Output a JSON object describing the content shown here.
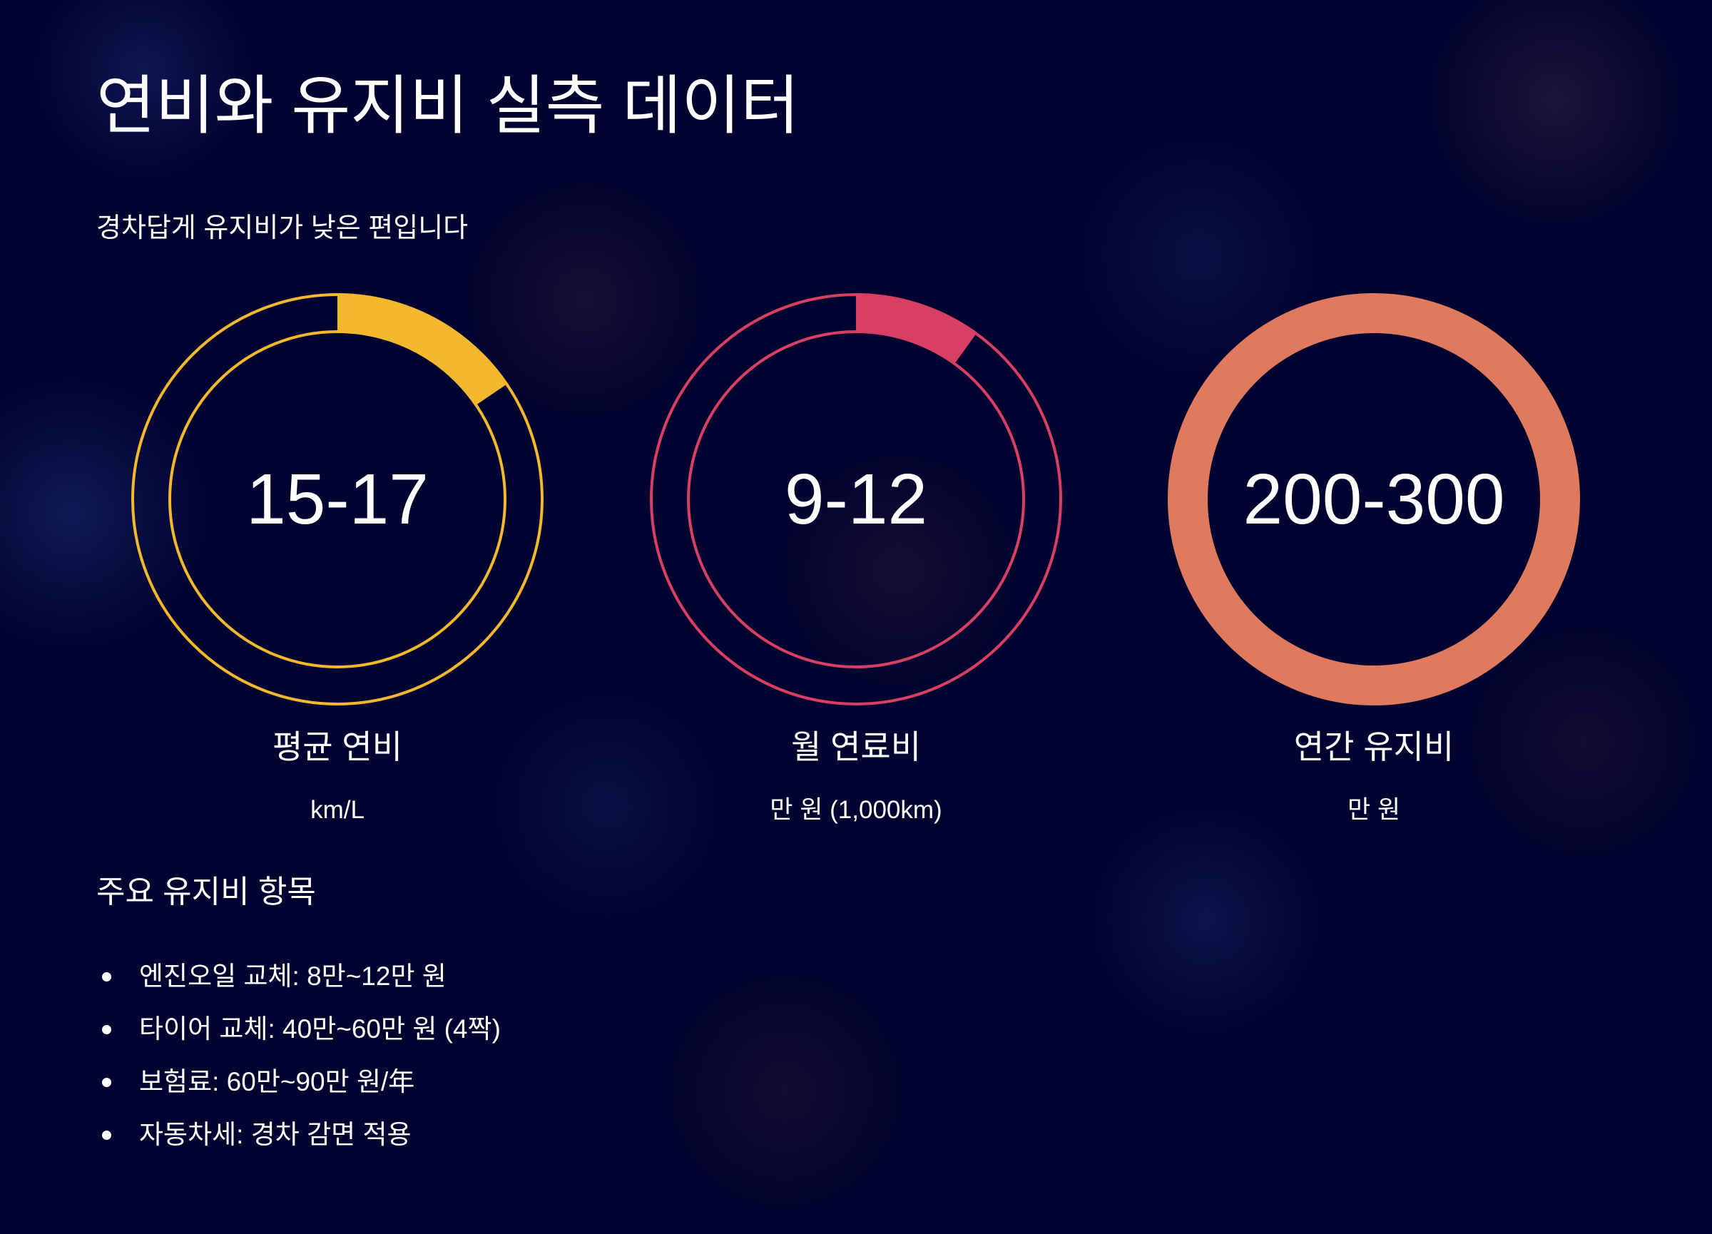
{
  "page": {
    "title": "연비와 유지비 실측 데이터",
    "subtitle": "경차답게 유지비가 낮은 편입니다",
    "background_color": "#010230"
  },
  "gauges": [
    {
      "value": "15-17",
      "label": "평균 연비",
      "unit": "km/L",
      "fill_fraction": 0.155,
      "color": "#f3b82d"
    },
    {
      "value": "9-12",
      "label": "월 연료비",
      "unit": "만 원 (1,000km)",
      "fill_fraction": 0.1,
      "color": "#d83f63"
    },
    {
      "value": "200-300",
      "label": "연간 유지비",
      "unit": "만 원",
      "fill_fraction": 1.0,
      "color": "#e07a5f"
    }
  ],
  "maintenance": {
    "heading": "주요 유지비 항목",
    "items": [
      "엔진오일 교체: 8만~12만 원",
      "타이어 교체: 40만~60만 원 (4짝)",
      "보험료: 60만~90만 원/年",
      "자동차세: 경차 감면 적용"
    ]
  }
}
